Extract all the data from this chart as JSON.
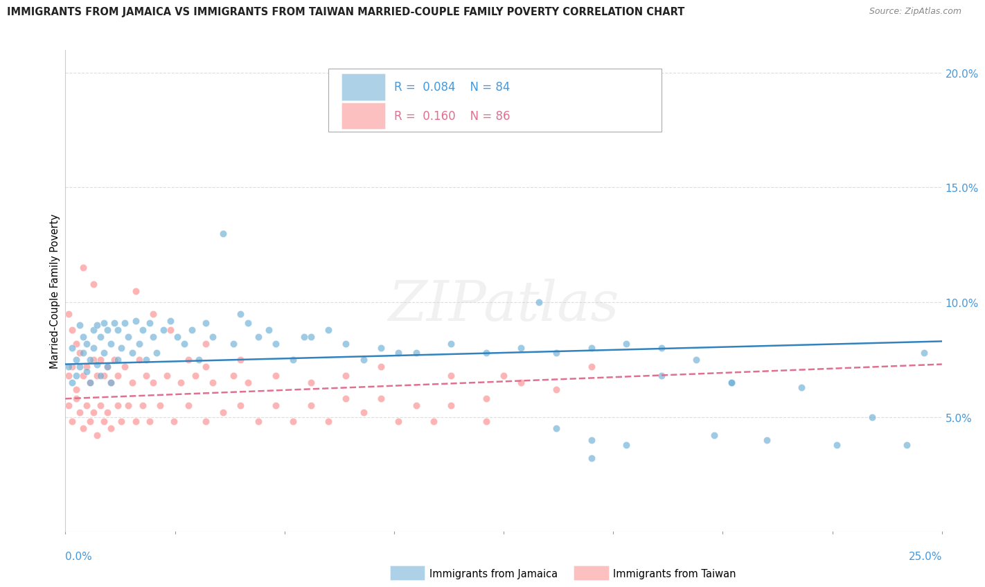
{
  "title": "IMMIGRANTS FROM JAMAICA VS IMMIGRANTS FROM TAIWAN MARRIED-COUPLE FAMILY POVERTY CORRELATION CHART",
  "source": "Source: ZipAtlas.com",
  "ylabel": "Married-Couple Family Poverty",
  "watermark_text": "ZIPatlas",
  "legend_jamaica_R": 0.084,
  "legend_jamaica_N": 84,
  "legend_taiwan_R": 0.16,
  "legend_taiwan_N": 86,
  "jamaica_color": "#6baed6",
  "taiwan_color": "#fc8d8d",
  "jamaica_line_color": "#3182bd",
  "taiwan_line_color": "#e07090",
  "xlim": [
    0.0,
    0.25
  ],
  "ylim": [
    0.0,
    0.21
  ],
  "yticks": [
    0.05,
    0.1,
    0.15,
    0.2
  ],
  "ytick_labels": [
    "5.0%",
    "10.0%",
    "15.0%",
    "20.0%"
  ],
  "grid_color": "#dddddd",
  "title_color": "#222222",
  "source_color": "#888888",
  "tick_color": "#4499dd",
  "jamaica_trend": [
    0.0,
    0.25,
    0.073,
    0.083
  ],
  "taiwan_trend": [
    0.0,
    0.25,
    0.058,
    0.073
  ],
  "jamaica_scatter": [
    [
      0.001,
      0.072
    ],
    [
      0.002,
      0.065
    ],
    [
      0.002,
      0.08
    ],
    [
      0.003,
      0.075
    ],
    [
      0.003,
      0.068
    ],
    [
      0.004,
      0.09
    ],
    [
      0.004,
      0.072
    ],
    [
      0.005,
      0.085
    ],
    [
      0.005,
      0.078
    ],
    [
      0.006,
      0.07
    ],
    [
      0.006,
      0.082
    ],
    [
      0.007,
      0.075
    ],
    [
      0.007,
      0.065
    ],
    [
      0.008,
      0.088
    ],
    [
      0.008,
      0.08
    ],
    [
      0.009,
      0.073
    ],
    [
      0.009,
      0.09
    ],
    [
      0.01,
      0.085
    ],
    [
      0.01,
      0.068
    ],
    [
      0.011,
      0.091
    ],
    [
      0.011,
      0.078
    ],
    [
      0.012,
      0.088
    ],
    [
      0.012,
      0.072
    ],
    [
      0.013,
      0.082
    ],
    [
      0.013,
      0.065
    ],
    [
      0.014,
      0.091
    ],
    [
      0.015,
      0.075
    ],
    [
      0.015,
      0.088
    ],
    [
      0.016,
      0.08
    ],
    [
      0.017,
      0.091
    ],
    [
      0.018,
      0.085
    ],
    [
      0.019,
      0.078
    ],
    [
      0.02,
      0.092
    ],
    [
      0.021,
      0.082
    ],
    [
      0.022,
      0.088
    ],
    [
      0.023,
      0.075
    ],
    [
      0.024,
      0.091
    ],
    [
      0.025,
      0.085
    ],
    [
      0.026,
      0.078
    ],
    [
      0.028,
      0.088
    ],
    [
      0.03,
      0.092
    ],
    [
      0.032,
      0.085
    ],
    [
      0.034,
      0.082
    ],
    [
      0.036,
      0.088
    ],
    [
      0.038,
      0.075
    ],
    [
      0.04,
      0.091
    ],
    [
      0.042,
      0.085
    ],
    [
      0.045,
      0.13
    ],
    [
      0.048,
      0.082
    ],
    [
      0.05,
      0.095
    ],
    [
      0.052,
      0.091
    ],
    [
      0.055,
      0.085
    ],
    [
      0.058,
      0.088
    ],
    [
      0.06,
      0.082
    ],
    [
      0.065,
      0.075
    ],
    [
      0.068,
      0.085
    ],
    [
      0.07,
      0.085
    ],
    [
      0.075,
      0.088
    ],
    [
      0.08,
      0.082
    ],
    [
      0.085,
      0.075
    ],
    [
      0.09,
      0.08
    ],
    [
      0.095,
      0.078
    ],
    [
      0.1,
      0.078
    ],
    [
      0.11,
      0.082
    ],
    [
      0.12,
      0.078
    ],
    [
      0.13,
      0.08
    ],
    [
      0.14,
      0.078
    ],
    [
      0.15,
      0.08
    ],
    [
      0.16,
      0.082
    ],
    [
      0.17,
      0.08
    ],
    [
      0.18,
      0.075
    ],
    [
      0.19,
      0.065
    ],
    [
      0.135,
      0.1
    ],
    [
      0.14,
      0.045
    ],
    [
      0.15,
      0.04
    ],
    [
      0.16,
      0.038
    ],
    [
      0.185,
      0.042
    ],
    [
      0.2,
      0.04
    ],
    [
      0.22,
      0.038
    ],
    [
      0.24,
      0.038
    ],
    [
      0.19,
      0.065
    ],
    [
      0.17,
      0.068
    ],
    [
      0.21,
      0.063
    ],
    [
      0.23,
      0.05
    ],
    [
      0.15,
      0.032
    ],
    [
      0.245,
      0.078
    ]
  ],
  "taiwan_scatter": [
    [
      0.001,
      0.068
    ],
    [
      0.001,
      0.055
    ],
    [
      0.002,
      0.072
    ],
    [
      0.002,
      0.048
    ],
    [
      0.003,
      0.062
    ],
    [
      0.003,
      0.058
    ],
    [
      0.004,
      0.078
    ],
    [
      0.004,
      0.052
    ],
    [
      0.005,
      0.068
    ],
    [
      0.005,
      0.045
    ],
    [
      0.006,
      0.072
    ],
    [
      0.006,
      0.055
    ],
    [
      0.007,
      0.065
    ],
    [
      0.007,
      0.048
    ],
    [
      0.008,
      0.075
    ],
    [
      0.008,
      0.052
    ],
    [
      0.009,
      0.068
    ],
    [
      0.009,
      0.042
    ],
    [
      0.01,
      0.075
    ],
    [
      0.01,
      0.055
    ],
    [
      0.011,
      0.068
    ],
    [
      0.011,
      0.048
    ],
    [
      0.012,
      0.072
    ],
    [
      0.012,
      0.052
    ],
    [
      0.013,
      0.065
    ],
    [
      0.013,
      0.045
    ],
    [
      0.014,
      0.075
    ],
    [
      0.015,
      0.055
    ],
    [
      0.015,
      0.068
    ],
    [
      0.016,
      0.048
    ],
    [
      0.017,
      0.072
    ],
    [
      0.018,
      0.055
    ],
    [
      0.019,
      0.065
    ],
    [
      0.02,
      0.048
    ],
    [
      0.021,
      0.075
    ],
    [
      0.022,
      0.055
    ],
    [
      0.023,
      0.068
    ],
    [
      0.024,
      0.048
    ],
    [
      0.025,
      0.065
    ],
    [
      0.027,
      0.055
    ],
    [
      0.029,
      0.068
    ],
    [
      0.031,
      0.048
    ],
    [
      0.033,
      0.065
    ],
    [
      0.035,
      0.055
    ],
    [
      0.037,
      0.068
    ],
    [
      0.04,
      0.048
    ],
    [
      0.042,
      0.065
    ],
    [
      0.045,
      0.052
    ],
    [
      0.048,
      0.068
    ],
    [
      0.05,
      0.055
    ],
    [
      0.052,
      0.065
    ],
    [
      0.055,
      0.048
    ],
    [
      0.06,
      0.055
    ],
    [
      0.065,
      0.048
    ],
    [
      0.07,
      0.055
    ],
    [
      0.075,
      0.048
    ],
    [
      0.08,
      0.058
    ],
    [
      0.085,
      0.052
    ],
    [
      0.09,
      0.058
    ],
    [
      0.095,
      0.048
    ],
    [
      0.1,
      0.055
    ],
    [
      0.105,
      0.048
    ],
    [
      0.11,
      0.055
    ],
    [
      0.12,
      0.048
    ],
    [
      0.02,
      0.105
    ],
    [
      0.025,
      0.095
    ],
    [
      0.03,
      0.088
    ],
    [
      0.035,
      0.075
    ],
    [
      0.04,
      0.082
    ],
    [
      0.005,
      0.115
    ],
    [
      0.008,
      0.108
    ],
    [
      0.001,
      0.095
    ],
    [
      0.002,
      0.088
    ],
    [
      0.003,
      0.082
    ],
    [
      0.07,
      0.065
    ],
    [
      0.08,
      0.068
    ],
    [
      0.09,
      0.072
    ],
    [
      0.06,
      0.068
    ],
    [
      0.05,
      0.075
    ],
    [
      0.04,
      0.072
    ],
    [
      0.11,
      0.068
    ],
    [
      0.13,
      0.065
    ],
    [
      0.15,
      0.072
    ],
    [
      0.12,
      0.058
    ],
    [
      0.14,
      0.062
    ],
    [
      0.125,
      0.068
    ]
  ]
}
